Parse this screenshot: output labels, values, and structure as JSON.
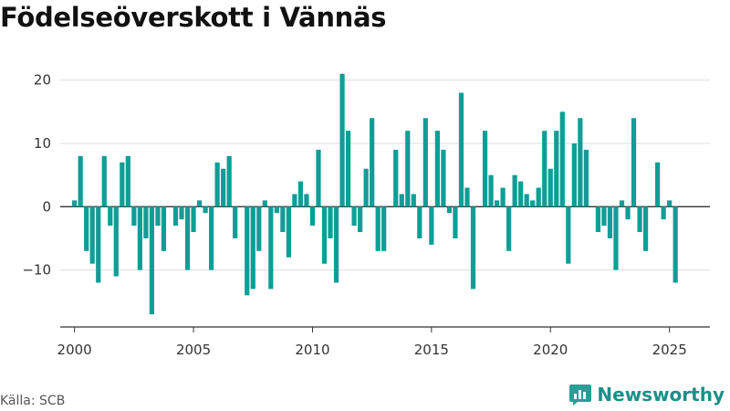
{
  "chart_data": {
    "type": "bar",
    "title": "Födelseöverskott i Vännäs",
    "source": "Källa: SCB",
    "brand": "Newsworthy",
    "color": "#0f9e96",
    "xlim": [
      1999.4,
      2026.7
    ],
    "ylim": [
      -19,
      24
    ],
    "yticks": [
      -10,
      0,
      10,
      20
    ],
    "ytick_labels": [
      "−10",
      "0",
      "10",
      "20"
    ],
    "xticks": [
      2000,
      2005,
      2010,
      2015,
      2020,
      2025
    ],
    "xtick_labels": [
      "2000",
      "2005",
      "2010",
      "2015",
      "2020",
      "2025"
    ],
    "grid": true,
    "quarterly_start_year": 2000,
    "values": [
      1,
      8,
      -7,
      -9,
      -12,
      8,
      -3,
      -11,
      7,
      8,
      -3,
      -10,
      -5,
      -17,
      -3,
      -7,
      0,
      -3,
      -2,
      -10,
      -4,
      1,
      -1,
      -10,
      7,
      6,
      8,
      -5,
      0,
      -14,
      -13,
      -7,
      1,
      -13,
      -1,
      -4,
      -8,
      2,
      4,
      2,
      -3,
      9,
      -9,
      -5,
      -12,
      21,
      12,
      -3,
      -4,
      6,
      14,
      -7,
      -7,
      0,
      9,
      2,
      12,
      2,
      -5,
      14,
      -6,
      12,
      9,
      -1,
      -5,
      18,
      3,
      -13,
      0,
      12,
      5,
      1,
      3,
      -7,
      5,
      4,
      2,
      1,
      3,
      12,
      6,
      12,
      15,
      -9,
      10,
      14,
      9,
      0,
      -4,
      -3,
      -5,
      -10,
      1,
      -2,
      14,
      -4,
      -7,
      0,
      7,
      -2,
      1,
      -12
    ]
  }
}
